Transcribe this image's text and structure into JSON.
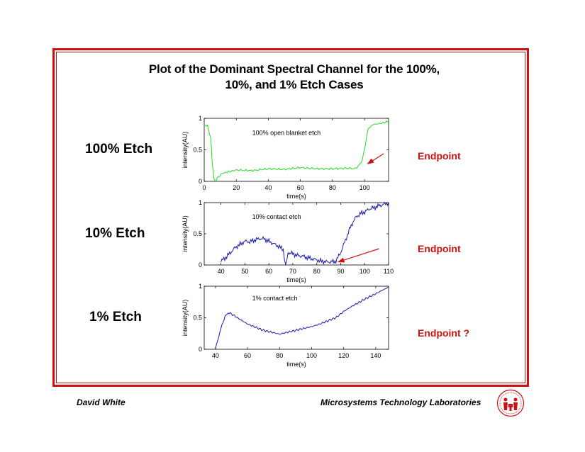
{
  "slide": {
    "title_line1": "Plot of the Dominant Spectral Channel for the 100%,",
    "title_line2": "10%, and 1% Etch Cases",
    "footer_author": "David White",
    "footer_org": "Microsystems Technology Laboratories",
    "accent_color": "#cc1111"
  },
  "cases": [
    {
      "label": "100% Etch",
      "endpoint_label": "Endpoint"
    },
    {
      "label": "10% Etch",
      "endpoint_label": "Endpoint"
    },
    {
      "label": "1% Etch",
      "endpoint_label": "Endpoint ?"
    }
  ],
  "chart_data": [
    {
      "type": "line",
      "annotation": "100% open blanket etch",
      "xlabel": "time(s)",
      "ylabel": "intensity(AU)",
      "xlim": [
        0,
        115
      ],
      "ylim": [
        0,
        1
      ],
      "xticks": [
        0,
        20,
        40,
        60,
        80,
        100
      ],
      "yticks": [
        0,
        0.5,
        1
      ],
      "ytick_labels": [
        "0",
        "0.5",
        "1"
      ],
      "color": "#22dd22",
      "x": [
        0,
        2,
        4,
        5,
        6,
        7,
        8,
        10,
        12,
        15,
        20,
        30,
        40,
        50,
        60,
        70,
        80,
        90,
        94,
        96,
        98,
        100,
        102,
        105,
        110,
        115
      ],
      "y": [
        0.9,
        0.88,
        0.7,
        0.3,
        0.05,
        0.0,
        0.05,
        0.1,
        0.13,
        0.15,
        0.18,
        0.17,
        0.2,
        0.19,
        0.22,
        0.2,
        0.2,
        0.21,
        0.2,
        0.24,
        0.3,
        0.5,
        0.82,
        0.9,
        0.92,
        0.95
      ],
      "arrow": {
        "from": [
          112,
          0.44
        ],
        "to": [
          102,
          0.28
        ]
      }
    },
    {
      "type": "line",
      "annotation": "10% contact etch",
      "xlabel": "time(s)",
      "ylabel": "intensity(AU)",
      "xlim": [
        33,
        110
      ],
      "ylim": [
        0,
        1
      ],
      "xticks": [
        40,
        50,
        60,
        70,
        80,
        90,
        100,
        110
      ],
      "yticks": [
        0,
        0.5,
        1
      ],
      "ytick_labels": [
        "0",
        "0.5",
        "1"
      ],
      "color": "#1a1aaa",
      "x": [
        40,
        42,
        44,
        46,
        48,
        50,
        52,
        54,
        56,
        58,
        60,
        62,
        64,
        66,
        67,
        68,
        70,
        72,
        74,
        76,
        78,
        80,
        82,
        84,
        86,
        88,
        90,
        92,
        94,
        96,
        98,
        100,
        102,
        104,
        106,
        108,
        110
      ],
      "y": [
        0.06,
        0.12,
        0.2,
        0.28,
        0.33,
        0.38,
        0.37,
        0.4,
        0.42,
        0.42,
        0.38,
        0.34,
        0.3,
        0.25,
        0.0,
        0.2,
        0.18,
        0.15,
        0.14,
        0.12,
        0.1,
        0.08,
        0.06,
        0.05,
        0.05,
        0.06,
        0.2,
        0.4,
        0.6,
        0.75,
        0.82,
        0.85,
        0.9,
        0.92,
        0.95,
        0.97,
        1.0
      ],
      "arrow": {
        "from": [
          106,
          0.26
        ],
        "to": [
          89,
          0.05
        ]
      }
    },
    {
      "type": "line",
      "annotation": "1% contact etch",
      "xlabel": "time(s)",
      "ylabel": "intensity(AU)",
      "xlim": [
        33,
        148
      ],
      "ylim": [
        0,
        1
      ],
      "xticks": [
        40,
        60,
        80,
        100,
        120,
        140
      ],
      "yticks": [
        0,
        0.5,
        1
      ],
      "ytick_labels": [
        "0",
        "0.5",
        "1"
      ],
      "color": "#1a1aaa",
      "x": [
        40,
        42,
        44,
        46,
        48,
        50,
        55,
        60,
        65,
        70,
        75,
        80,
        85,
        90,
        95,
        100,
        105,
        110,
        115,
        120,
        125,
        130,
        135,
        140,
        145,
        148
      ],
      "y": [
        0.0,
        0.2,
        0.38,
        0.52,
        0.58,
        0.56,
        0.48,
        0.4,
        0.35,
        0.3,
        0.27,
        0.24,
        0.27,
        0.3,
        0.33,
        0.36,
        0.4,
        0.45,
        0.5,
        0.6,
        0.68,
        0.75,
        0.82,
        0.88,
        0.95,
        0.98
      ]
    }
  ]
}
